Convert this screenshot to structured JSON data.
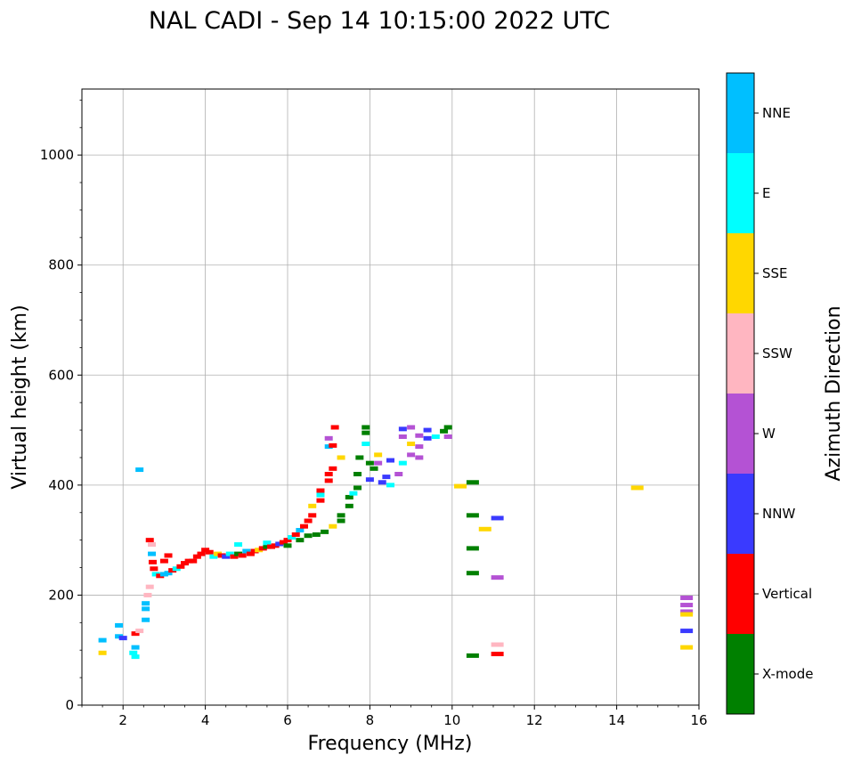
{
  "chart_data": {
    "type": "scatter",
    "title": "NAL CADI - Sep 14 10:15:00 2022 UTC",
    "xlabel": "Frequency (MHz)",
    "ylabel": "Virtual height (km)",
    "xlim": [
      1,
      16
    ],
    "ylim": [
      0,
      1120
    ],
    "xticks": [
      2,
      4,
      6,
      8,
      10,
      12,
      14,
      16
    ],
    "yticks": [
      0,
      200,
      400,
      600,
      800,
      1000
    ],
    "grid": true,
    "colorbar": {
      "label": "Azimuth Direction",
      "categories": [
        {
          "name": "X-mode",
          "color": "#008000"
        },
        {
          "name": "Vertical",
          "color": "#ff0000"
        },
        {
          "name": "NNW",
          "color": "#3a3aff"
        },
        {
          "name": "W",
          "color": "#b452d4"
        },
        {
          "name": "SSW",
          "color": "#ffb6c1"
        },
        {
          "name": "SSE",
          "color": "#ffd700"
        },
        {
          "name": "E",
          "color": "#00ffff"
        },
        {
          "name": "NNE",
          "color": "#00bfff"
        }
      ]
    },
    "points": [
      {
        "f": 1.5,
        "h": 95,
        "c": "SSE"
      },
      {
        "f": 1.5,
        "h": 118,
        "c": "NNE"
      },
      {
        "f": 1.9,
        "h": 125,
        "c": "NNE"
      },
      {
        "f": 2.0,
        "h": 122,
        "c": "NNW"
      },
      {
        "f": 1.9,
        "h": 145,
        "c": "NNE"
      },
      {
        "f": 2.25,
        "h": 95,
        "c": "E"
      },
      {
        "f": 2.3,
        "h": 88,
        "c": "E"
      },
      {
        "f": 2.3,
        "h": 105,
        "c": "NNE"
      },
      {
        "f": 2.3,
        "h": 130,
        "c": "Vertical"
      },
      {
        "f": 2.4,
        "h": 135,
        "c": "SSW"
      },
      {
        "f": 2.4,
        "h": 428,
        "c": "NNE"
      },
      {
        "f": 2.55,
        "h": 155,
        "c": "NNE"
      },
      {
        "f": 2.55,
        "h": 175,
        "c": "NNE"
      },
      {
        "f": 2.55,
        "h": 185,
        "c": "NNE"
      },
      {
        "f": 2.6,
        "h": 200,
        "c": "SSW"
      },
      {
        "f": 2.65,
        "h": 215,
        "c": "SSW"
      },
      {
        "f": 2.65,
        "h": 300,
        "c": "Vertical"
      },
      {
        "f": 2.7,
        "h": 292,
        "c": "SSW"
      },
      {
        "f": 2.7,
        "h": 275,
        "c": "NNE"
      },
      {
        "f": 2.72,
        "h": 260,
        "c": "Vertical"
      },
      {
        "f": 2.75,
        "h": 248,
        "c": "Vertical"
      },
      {
        "f": 2.8,
        "h": 238,
        "c": "E"
      },
      {
        "f": 2.9,
        "h": 235,
        "c": "Vertical"
      },
      {
        "f": 3.0,
        "h": 238,
        "c": "NNE"
      },
      {
        "f": 3.0,
        "h": 262,
        "c": "Vertical"
      },
      {
        "f": 3.1,
        "h": 240,
        "c": "NNE"
      },
      {
        "f": 3.1,
        "h": 272,
        "c": "Vertical"
      },
      {
        "f": 3.2,
        "h": 245,
        "c": "Vertical"
      },
      {
        "f": 3.3,
        "h": 248,
        "c": "E"
      },
      {
        "f": 3.4,
        "h": 252,
        "c": "Vertical"
      },
      {
        "f": 3.5,
        "h": 258,
        "c": "Vertical"
      },
      {
        "f": 3.6,
        "h": 262,
        "c": "Vertical"
      },
      {
        "f": 3.7,
        "h": 262,
        "c": "Vertical"
      },
      {
        "f": 3.8,
        "h": 270,
        "c": "Vertical"
      },
      {
        "f": 3.9,
        "h": 275,
        "c": "Vertical"
      },
      {
        "f": 4.0,
        "h": 282,
        "c": "Vertical"
      },
      {
        "f": 4.1,
        "h": 278,
        "c": "Vertical"
      },
      {
        "f": 4.2,
        "h": 270,
        "c": "E"
      },
      {
        "f": 4.3,
        "h": 275,
        "c": "SSE"
      },
      {
        "f": 4.4,
        "h": 272,
        "c": "Vertical"
      },
      {
        "f": 4.5,
        "h": 270,
        "c": "NNW"
      },
      {
        "f": 4.6,
        "h": 275,
        "c": "E"
      },
      {
        "f": 4.7,
        "h": 270,
        "c": "Vertical"
      },
      {
        "f": 4.8,
        "h": 275,
        "c": "X-mode"
      },
      {
        "f": 4.8,
        "h": 292,
        "c": "E"
      },
      {
        "f": 4.9,
        "h": 272,
        "c": "Vertical"
      },
      {
        "f": 5.0,
        "h": 280,
        "c": "NNE"
      },
      {
        "f": 5.1,
        "h": 275,
        "c": "Vertical"
      },
      {
        "f": 5.2,
        "h": 280,
        "c": "Vertical"
      },
      {
        "f": 5.3,
        "h": 282,
        "c": "SSE"
      },
      {
        "f": 5.4,
        "h": 285,
        "c": "Vertical"
      },
      {
        "f": 5.5,
        "h": 288,
        "c": "X-mode"
      },
      {
        "f": 5.5,
        "h": 295,
        "c": "E"
      },
      {
        "f": 5.6,
        "h": 288,
        "c": "Vertical"
      },
      {
        "f": 5.7,
        "h": 290,
        "c": "Vertical"
      },
      {
        "f": 5.8,
        "h": 293,
        "c": "NNW"
      },
      {
        "f": 5.9,
        "h": 296,
        "c": "Vertical"
      },
      {
        "f": 6.0,
        "h": 300,
        "c": "Vertical"
      },
      {
        "f": 6.0,
        "h": 290,
        "c": "X-mode"
      },
      {
        "f": 6.1,
        "h": 305,
        "c": "E"
      },
      {
        "f": 6.2,
        "h": 310,
        "c": "Vertical"
      },
      {
        "f": 6.3,
        "h": 318,
        "c": "NNE"
      },
      {
        "f": 6.3,
        "h": 300,
        "c": "X-mode"
      },
      {
        "f": 6.4,
        "h": 325,
        "c": "Vertical"
      },
      {
        "f": 6.5,
        "h": 335,
        "c": "Vertical"
      },
      {
        "f": 6.5,
        "h": 308,
        "c": "X-mode"
      },
      {
        "f": 6.6,
        "h": 345,
        "c": "Vertical"
      },
      {
        "f": 6.6,
        "h": 362,
        "c": "SSE"
      },
      {
        "f": 6.7,
        "h": 310,
        "c": "X-mode"
      },
      {
        "f": 6.8,
        "h": 372,
        "c": "Vertical"
      },
      {
        "f": 6.8,
        "h": 390,
        "c": "Vertical"
      },
      {
        "f": 6.8,
        "h": 382,
        "c": "E"
      },
      {
        "f": 6.9,
        "h": 315,
        "c": "X-mode"
      },
      {
        "f": 7.0,
        "h": 408,
        "c": "Vertical"
      },
      {
        "f": 7.0,
        "h": 420,
        "c": "Vertical"
      },
      {
        "f": 7.0,
        "h": 470,
        "c": "NNE"
      },
      {
        "f": 7.0,
        "h": 485,
        "c": "W"
      },
      {
        "f": 7.1,
        "h": 325,
        "c": "SSE"
      },
      {
        "f": 7.1,
        "h": 430,
        "c": "Vertical"
      },
      {
        "f": 7.1,
        "h": 472,
        "c": "Vertical"
      },
      {
        "f": 7.15,
        "h": 505,
        "c": "Vertical"
      },
      {
        "f": 7.3,
        "h": 335,
        "c": "X-mode"
      },
      {
        "f": 7.3,
        "h": 345,
        "c": "X-mode"
      },
      {
        "f": 7.3,
        "h": 450,
        "c": "SSE"
      },
      {
        "f": 7.5,
        "h": 362,
        "c": "X-mode"
      },
      {
        "f": 7.5,
        "h": 378,
        "c": "X-mode"
      },
      {
        "f": 7.6,
        "h": 385,
        "c": "E"
      },
      {
        "f": 7.7,
        "h": 395,
        "c": "X-mode"
      },
      {
        "f": 7.7,
        "h": 420,
        "c": "X-mode"
      },
      {
        "f": 7.75,
        "h": 450,
        "c": "X-mode"
      },
      {
        "f": 7.9,
        "h": 495,
        "c": "X-mode"
      },
      {
        "f": 7.9,
        "h": 505,
        "c": "X-mode"
      },
      {
        "f": 7.9,
        "h": 475,
        "c": "E"
      },
      {
        "f": 8.0,
        "h": 440,
        "c": "X-mode"
      },
      {
        "f": 8.0,
        "h": 410,
        "c": "NNW"
      },
      {
        "f": 8.1,
        "h": 430,
        "c": "X-mode"
      },
      {
        "f": 8.2,
        "h": 440,
        "c": "W"
      },
      {
        "f": 8.2,
        "h": 455,
        "c": "SSE"
      },
      {
        "f": 8.3,
        "h": 405,
        "c": "NNW"
      },
      {
        "f": 8.4,
        "h": 415,
        "c": "NNW"
      },
      {
        "f": 8.5,
        "h": 400,
        "c": "E"
      },
      {
        "f": 8.5,
        "h": 445,
        "c": "NNW"
      },
      {
        "f": 8.7,
        "h": 420,
        "c": "W"
      },
      {
        "f": 8.8,
        "h": 440,
        "c": "E"
      },
      {
        "f": 8.8,
        "h": 488,
        "c": "W"
      },
      {
        "f": 8.8,
        "h": 502,
        "c": "NNW"
      },
      {
        "f": 9.0,
        "h": 455,
        "c": "W"
      },
      {
        "f": 9.0,
        "h": 475,
        "c": "SSE"
      },
      {
        "f": 9.0,
        "h": 505,
        "c": "W"
      },
      {
        "f": 9.2,
        "h": 470,
        "c": "W"
      },
      {
        "f": 9.2,
        "h": 490,
        "c": "W"
      },
      {
        "f": 9.2,
        "h": 450,
        "c": "W"
      },
      {
        "f": 9.4,
        "h": 485,
        "c": "NNW"
      },
      {
        "f": 9.4,
        "h": 500,
        "c": "NNW"
      },
      {
        "f": 9.6,
        "h": 488,
        "c": "E"
      },
      {
        "f": 9.8,
        "h": 498,
        "c": "X-mode"
      },
      {
        "f": 9.9,
        "h": 505,
        "c": "X-mode"
      },
      {
        "f": 9.9,
        "h": 488,
        "c": "W"
      },
      {
        "f": 10.2,
        "h": 398,
        "c": "SSE"
      },
      {
        "f": 10.5,
        "h": 405,
        "c": "X-mode"
      },
      {
        "f": 10.5,
        "h": 345,
        "c": "X-mode"
      },
      {
        "f": 10.5,
        "h": 285,
        "c": "X-mode"
      },
      {
        "f": 10.5,
        "h": 240,
        "c": "X-mode"
      },
      {
        "f": 10.5,
        "h": 90,
        "c": "X-mode"
      },
      {
        "f": 10.8,
        "h": 320,
        "c": "SSE"
      },
      {
        "f": 11.1,
        "h": 340,
        "c": "NNW"
      },
      {
        "f": 11.1,
        "h": 232,
        "c": "W"
      },
      {
        "f": 11.1,
        "h": 110,
        "c": "SSW"
      },
      {
        "f": 11.1,
        "h": 93,
        "c": "Vertical"
      },
      {
        "f": 14.5,
        "h": 395,
        "c": "SSE"
      },
      {
        "f": 15.7,
        "h": 195,
        "c": "W"
      },
      {
        "f": 15.7,
        "h": 182,
        "c": "W"
      },
      {
        "f": 15.7,
        "h": 170,
        "c": "W"
      },
      {
        "f": 15.7,
        "h": 165,
        "c": "SSE"
      },
      {
        "f": 15.7,
        "h": 135,
        "c": "NNW"
      },
      {
        "f": 15.7,
        "h": 105,
        "c": "SSE"
      }
    ]
  }
}
